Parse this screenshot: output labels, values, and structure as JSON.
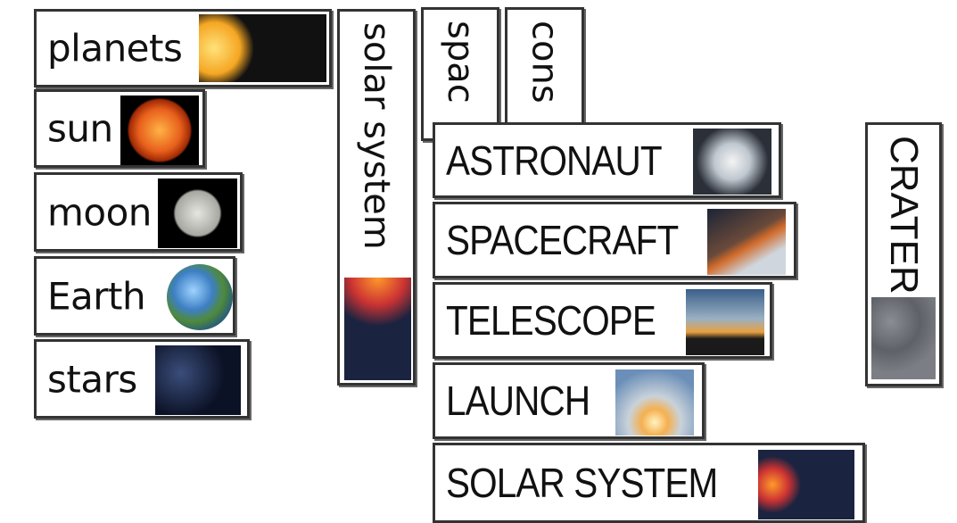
{
  "cards": [
    {
      "label": "planets"
    },
    {
      "label": "sun"
    },
    {
      "label": "moon"
    },
    {
      "label": "Earth"
    },
    {
      "label": "stars"
    },
    {
      "label": "solar system"
    },
    {
      "label": "spac"
    },
    {
      "label": "cons"
    },
    {
      "label": "ASTRONAUT"
    },
    {
      "label": "SPACECRAFT"
    },
    {
      "label": "TELESCOPE"
    },
    {
      "label": "LAUNCH"
    },
    {
      "label": "SOLAR SYSTEM"
    },
    {
      "label": "CRATER"
    }
  ]
}
